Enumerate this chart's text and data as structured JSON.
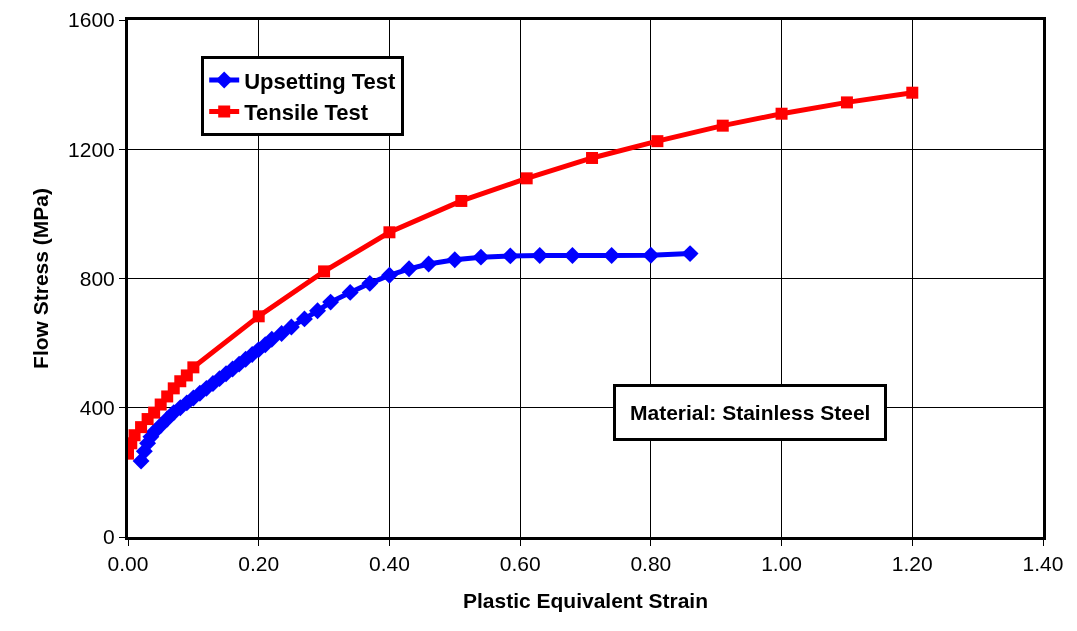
{
  "chart_data": {
    "type": "line",
    "xlabel": "Plastic Equivalent Strain",
    "ylabel": "Flow Stress (MPa)",
    "annotations": [
      "Material: Stainless Steel"
    ],
    "xlim": [
      0,
      1.4
    ],
    "xticks": [
      {
        "value": 0,
        "label": "0.00"
      },
      {
        "value": 0.2,
        "label": "0.20"
      },
      {
        "value": 0.4,
        "label": "0.40"
      },
      {
        "value": 0.6,
        "label": "0.60"
      },
      {
        "value": 0.8,
        "label": "0.80"
      },
      {
        "value": 1.0,
        "label": "1.00"
      },
      {
        "value": 1.2,
        "label": "1.20"
      },
      {
        "value": 1.4,
        "label": "1.40"
      }
    ],
    "ylim": [
      0,
      1600
    ],
    "yticks": [
      0,
      400,
      800,
      1200,
      1600
    ],
    "grid": true,
    "legend": "top left",
    "line_style": "solid",
    "series": [
      {
        "name": "Upsetting Test",
        "color": "#0000ff",
        "marker": "diamond",
        "x": [
          0.02,
          0.025,
          0.03,
          0.035,
          0.04,
          0.05,
          0.06,
          0.07,
          0.08,
          0.09,
          0.1,
          0.11,
          0.12,
          0.13,
          0.14,
          0.15,
          0.16,
          0.17,
          0.18,
          0.19,
          0.2,
          0.21,
          0.22,
          0.235,
          0.25,
          0.27,
          0.29,
          0.31,
          0.34,
          0.37,
          0.4,
          0.43,
          0.46,
          0.5,
          0.54,
          0.585,
          0.63,
          0.68,
          0.74,
          0.8,
          0.86
        ],
        "values": [
          235,
          265,
          290,
          310,
          325,
          345,
          365,
          385,
          400,
          415,
          430,
          445,
          460,
          475,
          490,
          505,
          520,
          535,
          550,
          565,
          580,
          595,
          612,
          630,
          650,
          675,
          700,
          727,
          757,
          785,
          810,
          830,
          845,
          858,
          866,
          870,
          871,
          871,
          871,
          872,
          877
        ]
      },
      {
        "name": "Tensile Test",
        "color": "#ff0000",
        "marker": "square",
        "x": [
          0,
          0.005,
          0.01,
          0.02,
          0.03,
          0.04,
          0.05,
          0.06,
          0.07,
          0.08,
          0.09,
          0.1,
          0.2,
          0.3,
          0.4,
          0.51,
          0.61,
          0.71,
          0.81,
          0.91,
          1.0,
          1.1,
          1.2
        ],
        "values": [
          258,
          290,
          315,
          340,
          365,
          385,
          410,
          435,
          460,
          482,
          500,
          525,
          683,
          822,
          943,
          1040,
          1110,
          1173,
          1225,
          1273,
          1310,
          1345,
          1375
        ]
      }
    ]
  }
}
